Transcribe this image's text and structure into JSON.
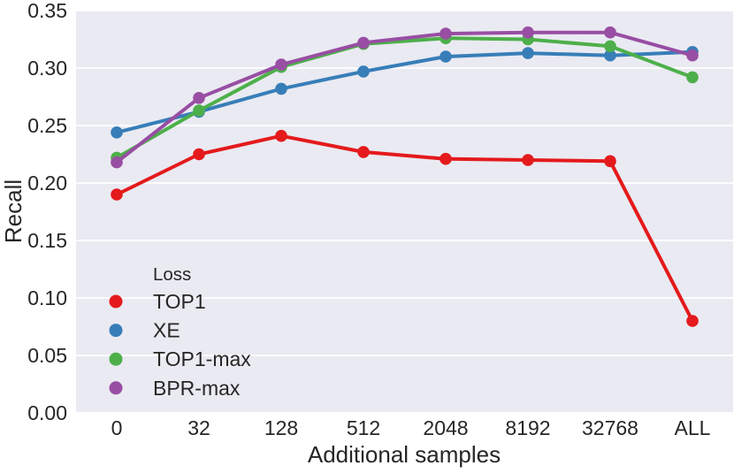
{
  "chart_data": {
    "type": "line",
    "title": "",
    "xlabel": "Additional samples",
    "ylabel": "Recall",
    "categories": [
      "0",
      "32",
      "128",
      "512",
      "2048",
      "8192",
      "32768",
      "ALL"
    ],
    "series": [
      {
        "name": "TOP1",
        "color": "#e41a1c",
        "values": [
          0.19,
          0.225,
          0.241,
          0.227,
          0.221,
          0.22,
          0.219,
          0.08
        ]
      },
      {
        "name": "XE",
        "color": "#377eb8",
        "values": [
          0.244,
          0.262,
          0.282,
          0.297,
          0.31,
          0.313,
          0.311,
          0.314
        ]
      },
      {
        "name": "TOP1-max",
        "color": "#4daf4a",
        "values": [
          0.222,
          0.263,
          0.301,
          0.321,
          0.326,
          0.325,
          0.319,
          0.292
        ]
      },
      {
        "name": "BPR-max",
        "color": "#984ea3",
        "values": [
          0.218,
          0.274,
          0.303,
          0.322,
          0.33,
          0.331,
          0.331,
          0.311
        ]
      }
    ],
    "ylim": [
      0.0,
      0.35
    ],
    "ytick_step": 0.05,
    "ytick_format_decimals": 2,
    "grid": true,
    "legend": {
      "title": "Loss",
      "position": "lower-left"
    },
    "style": {
      "plot_bg": "#eaeaf2",
      "grid_color": "#ffffff",
      "text_color": "#262626",
      "line_width": 4,
      "marker_radius": 6.8,
      "legend_marker_radius": 7.5
    }
  }
}
